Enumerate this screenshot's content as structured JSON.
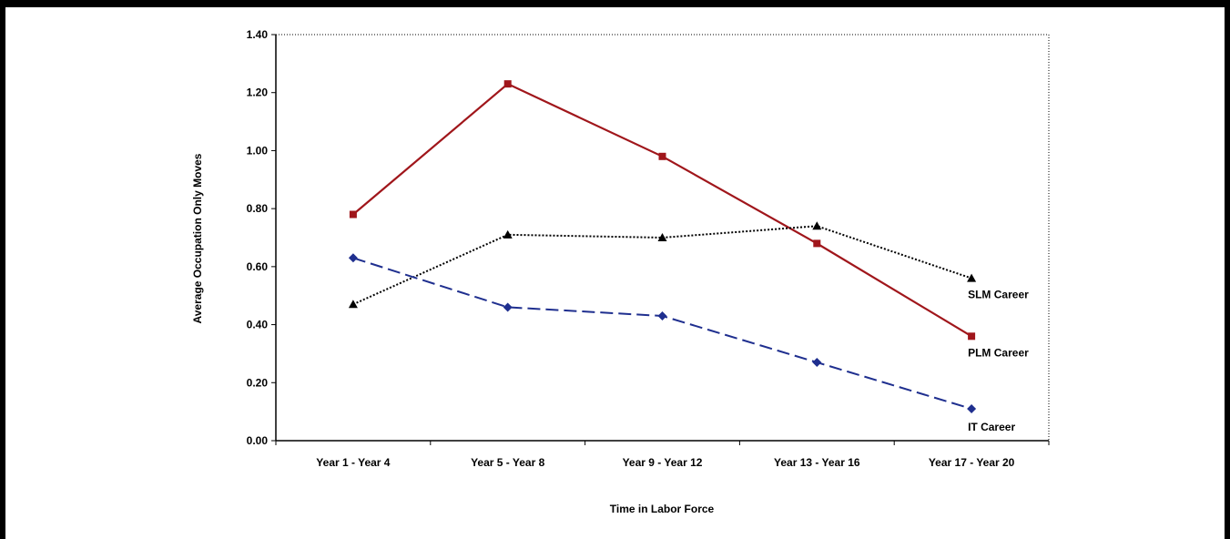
{
  "chart_data": {
    "type": "line",
    "categories": [
      "Year 1 - Year 4",
      "Year 5 - Year 8",
      "Year 9 - Year 12",
      "Year 13 - Year 16",
      "Year 17 - Year 20"
    ],
    "series": [
      {
        "name": "PLM Career",
        "values": [
          0.78,
          1.23,
          0.98,
          0.68,
          0.36
        ],
        "color": "#a0161b",
        "dash": "solid",
        "marker": "square"
      },
      {
        "name": "SLM Career",
        "values": [
          0.47,
          0.71,
          0.7,
          0.74,
          0.56
        ],
        "color": "#000000",
        "dash": "dotted",
        "marker": "triangle"
      },
      {
        "name": "IT Career",
        "values": [
          0.63,
          0.46,
          0.43,
          0.27,
          0.11
        ],
        "color": "#1f2f8f",
        "dash": "dashed",
        "marker": "diamond"
      }
    ],
    "xlabel": "Time in Labor Force",
    "ylabel": "Average Occupation Only Moves",
    "ylim": [
      0,
      1.4
    ],
    "yticks": [
      "0.00",
      "0.20",
      "0.40",
      "0.60",
      "0.80",
      "1.00",
      "1.20",
      "1.40"
    ],
    "grid": false,
    "legend": "inline labels at line ends"
  }
}
